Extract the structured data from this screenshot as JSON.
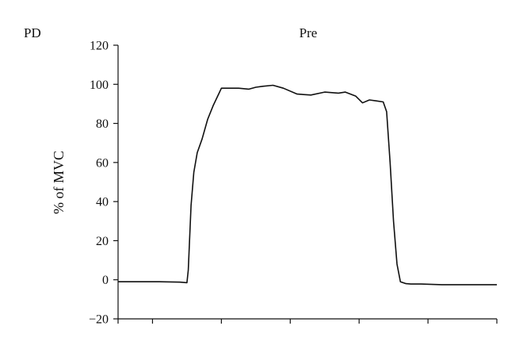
{
  "panel_label": "PD",
  "chart_data": {
    "type": "line",
    "title": "Pre",
    "xlabel": "",
    "ylabel": "% of MVC",
    "ylim": [
      -20,
      120
    ],
    "yticks": [
      -20,
      0,
      20,
      40,
      60,
      80,
      100,
      120
    ],
    "xlim": [
      0,
      5.5
    ],
    "xticks": [
      0,
      0.5,
      1.5,
      2.5,
      3.5,
      4.5,
      5.5
    ],
    "grid": false,
    "legend": "none",
    "line_color": "#111111",
    "series": [
      {
        "x": [
          0,
          0.3,
          0.6,
          0.9,
          1.0,
          1.02,
          1.06,
          1.1,
          1.15,
          1.22,
          1.3,
          1.38,
          1.46,
          1.5,
          1.6,
          1.75,
          1.9,
          2.0,
          2.1,
          2.25,
          2.4,
          2.6,
          2.8,
          3.0,
          3.2,
          3.3,
          3.45,
          3.55,
          3.65,
          3.75,
          3.85,
          3.9,
          3.95,
          4.0,
          4.05,
          4.1,
          4.18,
          4.25,
          4.4,
          4.7,
          5.0,
          5.3,
          5.5
        ],
        "y": [
          -1,
          -1,
          -1,
          -1.2,
          -1.5,
          5,
          38,
          55,
          65,
          72,
          82,
          89,
          95,
          98,
          98,
          98,
          97.5,
          98.5,
          99,
          99.5,
          98,
          95,
          94.5,
          96,
          95.5,
          96,
          94,
          90.5,
          92,
          91.5,
          91,
          86,
          60,
          30,
          8,
          -1,
          -2,
          -2.2,
          -2.2,
          -2.5,
          -2.5,
          -2.5,
          -2.5
        ]
      }
    ]
  }
}
